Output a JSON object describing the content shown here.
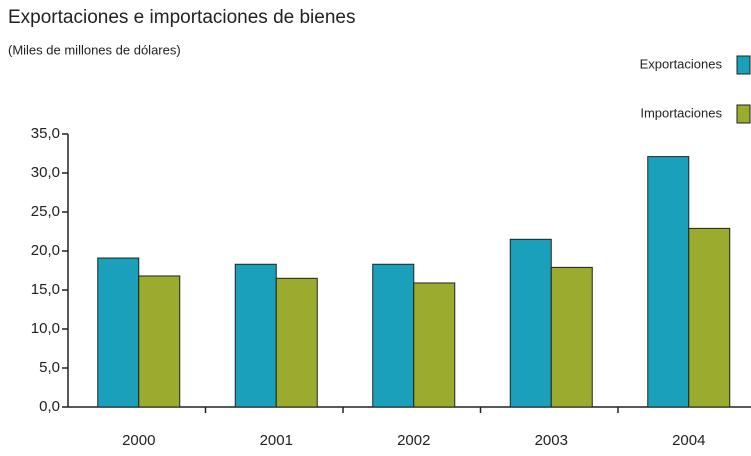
{
  "chart_data": {
    "type": "bar",
    "title": "Exportaciones e importaciones de bienes",
    "subtitle": "(Miles de millones de dólares)",
    "categories": [
      "2000",
      "2001",
      "2002",
      "2003",
      "2004"
    ],
    "series": [
      {
        "name": "Exportaciones",
        "color": "#1aa0bb",
        "values": [
          19.1,
          18.3,
          18.3,
          21.5,
          32.1
        ]
      },
      {
        "name": "Importaciones",
        "color": "#9aab2e",
        "values": [
          16.8,
          16.5,
          15.9,
          17.9,
          22.9
        ]
      }
    ],
    "ylim": [
      0,
      35
    ],
    "yticks": [
      {
        "value": 0,
        "label": "0,0"
      },
      {
        "value": 5,
        "label": "5,0"
      },
      {
        "value": 10,
        "label": "10,0"
      },
      {
        "value": 15,
        "label": "15,0"
      },
      {
        "value": 20,
        "label": "20,0"
      },
      {
        "value": 25,
        "label": "25,0"
      },
      {
        "value": 30,
        "label": "30,0"
      },
      {
        "value": 35,
        "label": "35,0"
      }
    ],
    "legend": "top-right",
    "grid": false
  }
}
